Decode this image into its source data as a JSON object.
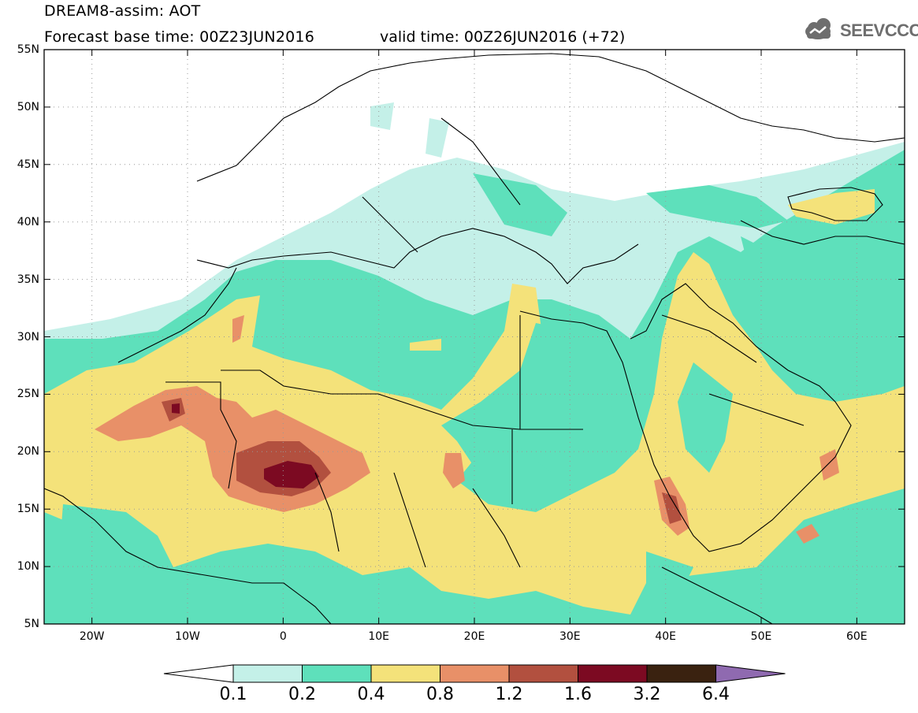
{
  "header": {
    "title": "DREAM8-assim: AOT",
    "base_time": "Forecast base time: 00Z23JUN2016",
    "valid_time": "valid time: 00Z26JUN2016 (+72)",
    "logo_text": "SEEVCCC",
    "logo_icon": "cloud-icon"
  },
  "map": {
    "lat_labels": [
      "55N",
      "50N",
      "45N",
      "40N",
      "35N",
      "30N",
      "25N",
      "20N",
      "15N",
      "10N",
      "5N"
    ],
    "lon_labels": [
      "20W",
      "10W",
      "0",
      "10E",
      "20E",
      "30E",
      "40E",
      "50E",
      "60E"
    ],
    "lat_range": [
      5,
      55
    ],
    "lon_range": [
      -25,
      65
    ],
    "grid": true
  },
  "legend": {
    "levels": [
      "0.1",
      "0.2",
      "0.4",
      "0.8",
      "1.2",
      "1.6",
      "3.2",
      "6.4"
    ],
    "colors": [
      "#c4f0e8",
      "#5ee0bb",
      "#f4e27a",
      "#e89068",
      "#b2503f",
      "#7c0a22",
      "#3a2210",
      "#8f6ab0"
    ]
  }
}
